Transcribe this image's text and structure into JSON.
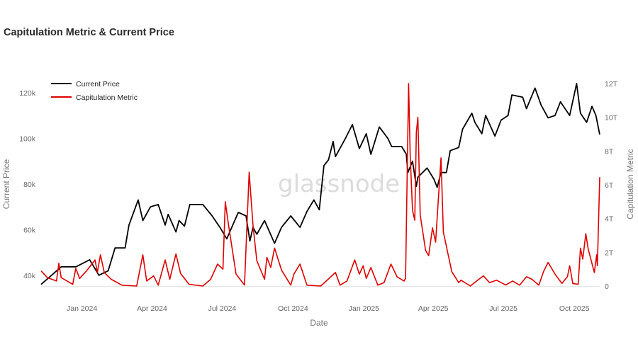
{
  "chart_data": {
    "type": "line",
    "title": "Capitulation Metric & Current Price",
    "watermark": "glassnode",
    "xlabel": "Date",
    "ylabel_left": "Current Price",
    "ylabel_right": "Capitulation Metric",
    "xlim": [
      "2023-11-09",
      "2025-11-03"
    ],
    "ylim_left": [
      35300,
      124000
    ],
    "ylim_right": [
      0,
      12
    ],
    "grid": false,
    "legend_position": "top-left",
    "x_ticks": [
      {
        "date": "2024-01-01",
        "label": "Jan 2024"
      },
      {
        "date": "2024-04-01",
        "label": "Apr 2024"
      },
      {
        "date": "2024-07-01",
        "label": "Jul 2024"
      },
      {
        "date": "2024-10-01",
        "label": "Oct 2024"
      },
      {
        "date": "2025-01-01",
        "label": "Jan 2025"
      },
      {
        "date": "2025-04-01",
        "label": "Apr 2025"
      },
      {
        "date": "2025-07-01",
        "label": "Jul 2025"
      },
      {
        "date": "2025-10-01",
        "label": "Oct 2025"
      }
    ],
    "y_ticks_left": [
      {
        "value": 40000,
        "label": "40k"
      },
      {
        "value": 60000,
        "label": "60k"
      },
      {
        "value": 80000,
        "label": "80k"
      },
      {
        "value": 100000,
        "label": "100k"
      },
      {
        "value": 120000,
        "label": "120k"
      }
    ],
    "y_ticks_right": [
      {
        "value": 0,
        "label": "0"
      },
      {
        "value": 2,
        "label": "2T"
      },
      {
        "value": 4,
        "label": "4T"
      },
      {
        "value": 6,
        "label": "6T"
      },
      {
        "value": 8,
        "label": "8T"
      },
      {
        "value": 10,
        "label": "10T"
      },
      {
        "value": 12,
        "label": "12T"
      }
    ],
    "series": [
      {
        "name": "Current Price",
        "axis": "left",
        "color": "#000000",
        "points": [
          [
            "2023-11-09",
            36000
          ],
          [
            "2023-12-05",
            43700
          ],
          [
            "2023-12-24",
            43700
          ],
          [
            "2024-01-11",
            46800
          ],
          [
            "2024-01-23",
            40000
          ],
          [
            "2024-02-04",
            42000
          ],
          [
            "2024-02-13",
            52000
          ],
          [
            "2024-02-26",
            52000
          ],
          [
            "2024-03-02",
            62000
          ],
          [
            "2024-03-14",
            73000
          ],
          [
            "2024-03-20",
            64000
          ],
          [
            "2024-03-30",
            70000
          ],
          [
            "2024-04-09",
            71000
          ],
          [
            "2024-04-18",
            62000
          ],
          [
            "2024-04-22",
            66700
          ],
          [
            "2024-05-02",
            59000
          ],
          [
            "2024-05-06",
            64000
          ],
          [
            "2024-05-13",
            61500
          ],
          [
            "2024-05-20",
            71000
          ],
          [
            "2024-06-06",
            71000
          ],
          [
            "2024-06-18",
            66000
          ],
          [
            "2024-06-28",
            61000
          ],
          [
            "2024-07-07",
            56000
          ],
          [
            "2024-07-22",
            67600
          ],
          [
            "2024-08-01",
            66000
          ],
          [
            "2024-08-06",
            55000
          ],
          [
            "2024-08-10",
            61000
          ],
          [
            "2024-08-15",
            58000
          ],
          [
            "2024-08-25",
            64000
          ],
          [
            "2024-09-07",
            54000
          ],
          [
            "2024-09-16",
            61000
          ],
          [
            "2024-09-28",
            66000
          ],
          [
            "2024-10-10",
            61000
          ],
          [
            "2024-10-19",
            68000
          ],
          [
            "2024-10-28",
            73000
          ],
          [
            "2024-11-04",
            68700
          ],
          [
            "2024-11-10",
            88000
          ],
          [
            "2024-11-16",
            90600
          ],
          [
            "2024-11-22",
            98600
          ],
          [
            "2024-11-25",
            92000
          ],
          [
            "2024-12-08",
            100000
          ],
          [
            "2024-12-17",
            106000
          ],
          [
            "2024-12-26",
            95500
          ],
          [
            "2025-01-04",
            102000
          ],
          [
            "2025-01-10",
            93000
          ],
          [
            "2025-01-21",
            105000
          ],
          [
            "2025-02-01",
            100000
          ],
          [
            "2025-02-06",
            96400
          ],
          [
            "2025-02-19",
            96400
          ],
          [
            "2025-02-25",
            93000
          ],
          [
            "2025-02-27",
            85000
          ],
          [
            "2025-03-05",
            90000
          ],
          [
            "2025-03-10",
            79000
          ],
          [
            "2025-03-12",
            83000
          ],
          [
            "2025-03-24",
            87000
          ],
          [
            "2025-04-02",
            82000
          ],
          [
            "2025-04-06",
            78500
          ],
          [
            "2025-04-11",
            85000
          ],
          [
            "2025-04-18",
            85000
          ],
          [
            "2025-04-23",
            94600
          ],
          [
            "2025-05-04",
            96000
          ],
          [
            "2025-05-09",
            104000
          ],
          [
            "2025-05-21",
            111000
          ],
          [
            "2025-05-25",
            107000
          ],
          [
            "2025-06-03",
            102000
          ],
          [
            "2025-06-08",
            110000
          ],
          [
            "2025-06-20",
            101000
          ],
          [
            "2025-06-28",
            108000
          ],
          [
            "2025-07-07",
            110000
          ],
          [
            "2025-07-12",
            119000
          ],
          [
            "2025-07-26",
            118000
          ],
          [
            "2025-07-31",
            113000
          ],
          [
            "2025-08-11",
            122000
          ],
          [
            "2025-08-19",
            114500
          ],
          [
            "2025-08-28",
            109000
          ],
          [
            "2025-09-06",
            110000
          ],
          [
            "2025-09-13",
            116000
          ],
          [
            "2025-09-25",
            110000
          ],
          [
            "2025-10-04",
            124000
          ],
          [
            "2025-10-09",
            111000
          ],
          [
            "2025-10-17",
            107000
          ],
          [
            "2025-10-24",
            114000
          ],
          [
            "2025-10-29",
            110000
          ],
          [
            "2025-11-03",
            101700
          ]
        ]
      },
      {
        "name": "Capitulation Metric",
        "axis": "right",
        "unit": "T",
        "color": "#e00000",
        "points": [
          [
            "2023-11-09",
            0.9
          ],
          [
            "2023-11-17",
            0.5
          ],
          [
            "2023-11-29",
            0.3
          ],
          [
            "2023-12-02",
            1.35
          ],
          [
            "2023-12-05",
            0.5
          ],
          [
            "2023-12-20",
            0.1
          ],
          [
            "2023-12-24",
            1.05
          ],
          [
            "2023-12-29",
            0.45
          ],
          [
            "2024-01-07",
            0.9
          ],
          [
            "2024-01-18",
            1.55
          ],
          [
            "2024-01-21",
            0.8
          ],
          [
            "2024-01-25",
            1.85
          ],
          [
            "2024-01-30",
            0.8
          ],
          [
            "2024-02-08",
            0.4
          ],
          [
            "2024-02-22",
            0.05
          ],
          [
            "2024-03-12",
            0
          ],
          [
            "2024-03-20",
            1.85
          ],
          [
            "2024-03-25",
            0.3
          ],
          [
            "2024-04-03",
            0.6
          ],
          [
            "2024-04-09",
            0.05
          ],
          [
            "2024-04-18",
            1.55
          ],
          [
            "2024-04-24",
            0.4
          ],
          [
            "2024-05-02",
            1.9
          ],
          [
            "2024-05-08",
            0.75
          ],
          [
            "2024-05-19",
            0.1
          ],
          [
            "2024-06-06",
            0
          ],
          [
            "2024-06-16",
            0.4
          ],
          [
            "2024-06-25",
            1.3
          ],
          [
            "2024-07-02",
            1.0
          ],
          [
            "2024-07-05",
            5.0
          ],
          [
            "2024-07-09",
            3.7
          ],
          [
            "2024-07-19",
            0.7
          ],
          [
            "2024-07-30",
            0.06
          ],
          [
            "2024-08-05",
            6.75
          ],
          [
            "2024-08-10",
            3.6
          ],
          [
            "2024-08-15",
            1.5
          ],
          [
            "2024-08-25",
            0.4
          ],
          [
            "2024-08-28",
            1.7
          ],
          [
            "2024-09-02",
            1.1
          ],
          [
            "2024-09-07",
            2.25
          ],
          [
            "2024-09-16",
            0.95
          ],
          [
            "2024-09-28",
            0.05
          ],
          [
            "2024-10-02",
            0.7
          ],
          [
            "2024-10-10",
            1.3
          ],
          [
            "2024-10-19",
            0.05
          ],
          [
            "2024-11-06",
            0
          ],
          [
            "2024-11-25",
            0.8
          ],
          [
            "2024-12-01",
            0.05
          ],
          [
            "2024-12-10",
            0.3
          ],
          [
            "2024-12-20",
            1.55
          ],
          [
            "2024-12-26",
            0.7
          ],
          [
            "2024-12-31",
            1.2
          ],
          [
            "2025-01-04",
            0.45
          ],
          [
            "2025-01-10",
            1.1
          ],
          [
            "2025-01-19",
            0.05
          ],
          [
            "2025-01-27",
            0.2
          ],
          [
            "2025-02-05",
            1.3
          ],
          [
            "2025-02-13",
            0.55
          ],
          [
            "2025-02-22",
            0.3
          ],
          [
            "2025-02-24",
            0.45
          ],
          [
            "2025-02-28",
            12.0
          ],
          [
            "2025-03-02",
            7.8
          ],
          [
            "2025-03-05",
            4.5
          ],
          [
            "2025-03-08",
            3.9
          ],
          [
            "2025-03-10",
            9.1
          ],
          [
            "2025-03-12",
            10.0
          ],
          [
            "2025-03-15",
            4.2
          ],
          [
            "2025-03-22",
            2.1
          ],
          [
            "2025-03-26",
            1.8
          ],
          [
            "2025-03-31",
            3.45
          ],
          [
            "2025-04-04",
            2.6
          ],
          [
            "2025-04-11",
            7.6
          ],
          [
            "2025-04-14",
            3.2
          ],
          [
            "2025-04-25",
            0.85
          ],
          [
            "2025-05-04",
            0.2
          ],
          [
            "2025-05-07",
            0.35
          ],
          [
            "2025-05-19",
            0
          ],
          [
            "2025-05-30",
            0.4
          ],
          [
            "2025-06-05",
            0.6
          ],
          [
            "2025-06-13",
            0.2
          ],
          [
            "2025-06-22",
            0.35
          ],
          [
            "2025-07-04",
            0.06
          ],
          [
            "2025-07-13",
            0.3
          ],
          [
            "2025-07-22",
            0.05
          ],
          [
            "2025-07-31",
            0.55
          ],
          [
            "2025-08-07",
            0.4
          ],
          [
            "2025-08-16",
            0.05
          ],
          [
            "2025-08-22",
            0.85
          ],
          [
            "2025-08-28",
            1.4
          ],
          [
            "2025-09-06",
            0.7
          ],
          [
            "2025-09-15",
            0.15
          ],
          [
            "2025-09-22",
            0.55
          ],
          [
            "2025-09-25",
            1.2
          ],
          [
            "2025-09-29",
            0.15
          ],
          [
            "2025-10-06",
            0.1
          ],
          [
            "2025-10-09",
            2.25
          ],
          [
            "2025-10-12",
            1.6
          ],
          [
            "2025-10-16",
            3.1
          ],
          [
            "2025-10-19",
            2.2
          ],
          [
            "2025-10-27",
            0.8
          ],
          [
            "2025-10-30",
            1.85
          ],
          [
            "2025-10-31",
            1.2
          ],
          [
            "2025-11-03",
            6.45
          ]
        ]
      }
    ]
  }
}
